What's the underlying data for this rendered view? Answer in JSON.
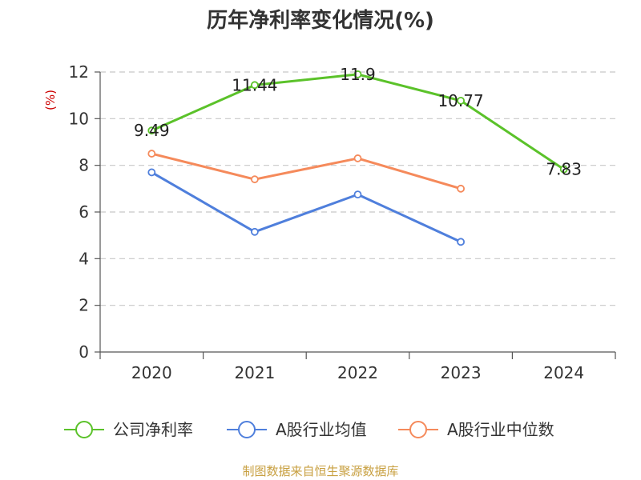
{
  "source": "制图数据来自恒生聚源数据库",
  "colors": {
    "source": "#c8a041",
    "ylabel": "#cc0000"
  },
  "chart_data": {
    "type": "line",
    "title": "历年净利率变化情况(%)",
    "ylabel": "(%)",
    "xlabel": "",
    "categories": [
      "2020",
      "2021",
      "2022",
      "2023",
      "2024"
    ],
    "ylim": [
      0,
      12
    ],
    "yticks": [
      0,
      2,
      4,
      6,
      8,
      10,
      12
    ],
    "grid": true,
    "legend_position": "bottom",
    "series": [
      {
        "name": "公司净利率",
        "color": "#5bc22a",
        "values": [
          9.49,
          11.44,
          11.9,
          10.77,
          7.83
        ],
        "data_labels": [
          "9.49",
          "11.44",
          "11.9",
          "10.77",
          "7.83"
        ]
      },
      {
        "name": "A股行业均值",
        "color": "#4f7fdc",
        "values": [
          7.7,
          5.15,
          6.75,
          4.72,
          null
        ]
      },
      {
        "name": "A股行业中位数",
        "color": "#f58a5b",
        "values": [
          8.5,
          7.4,
          8.3,
          7.0,
          null
        ]
      }
    ]
  }
}
